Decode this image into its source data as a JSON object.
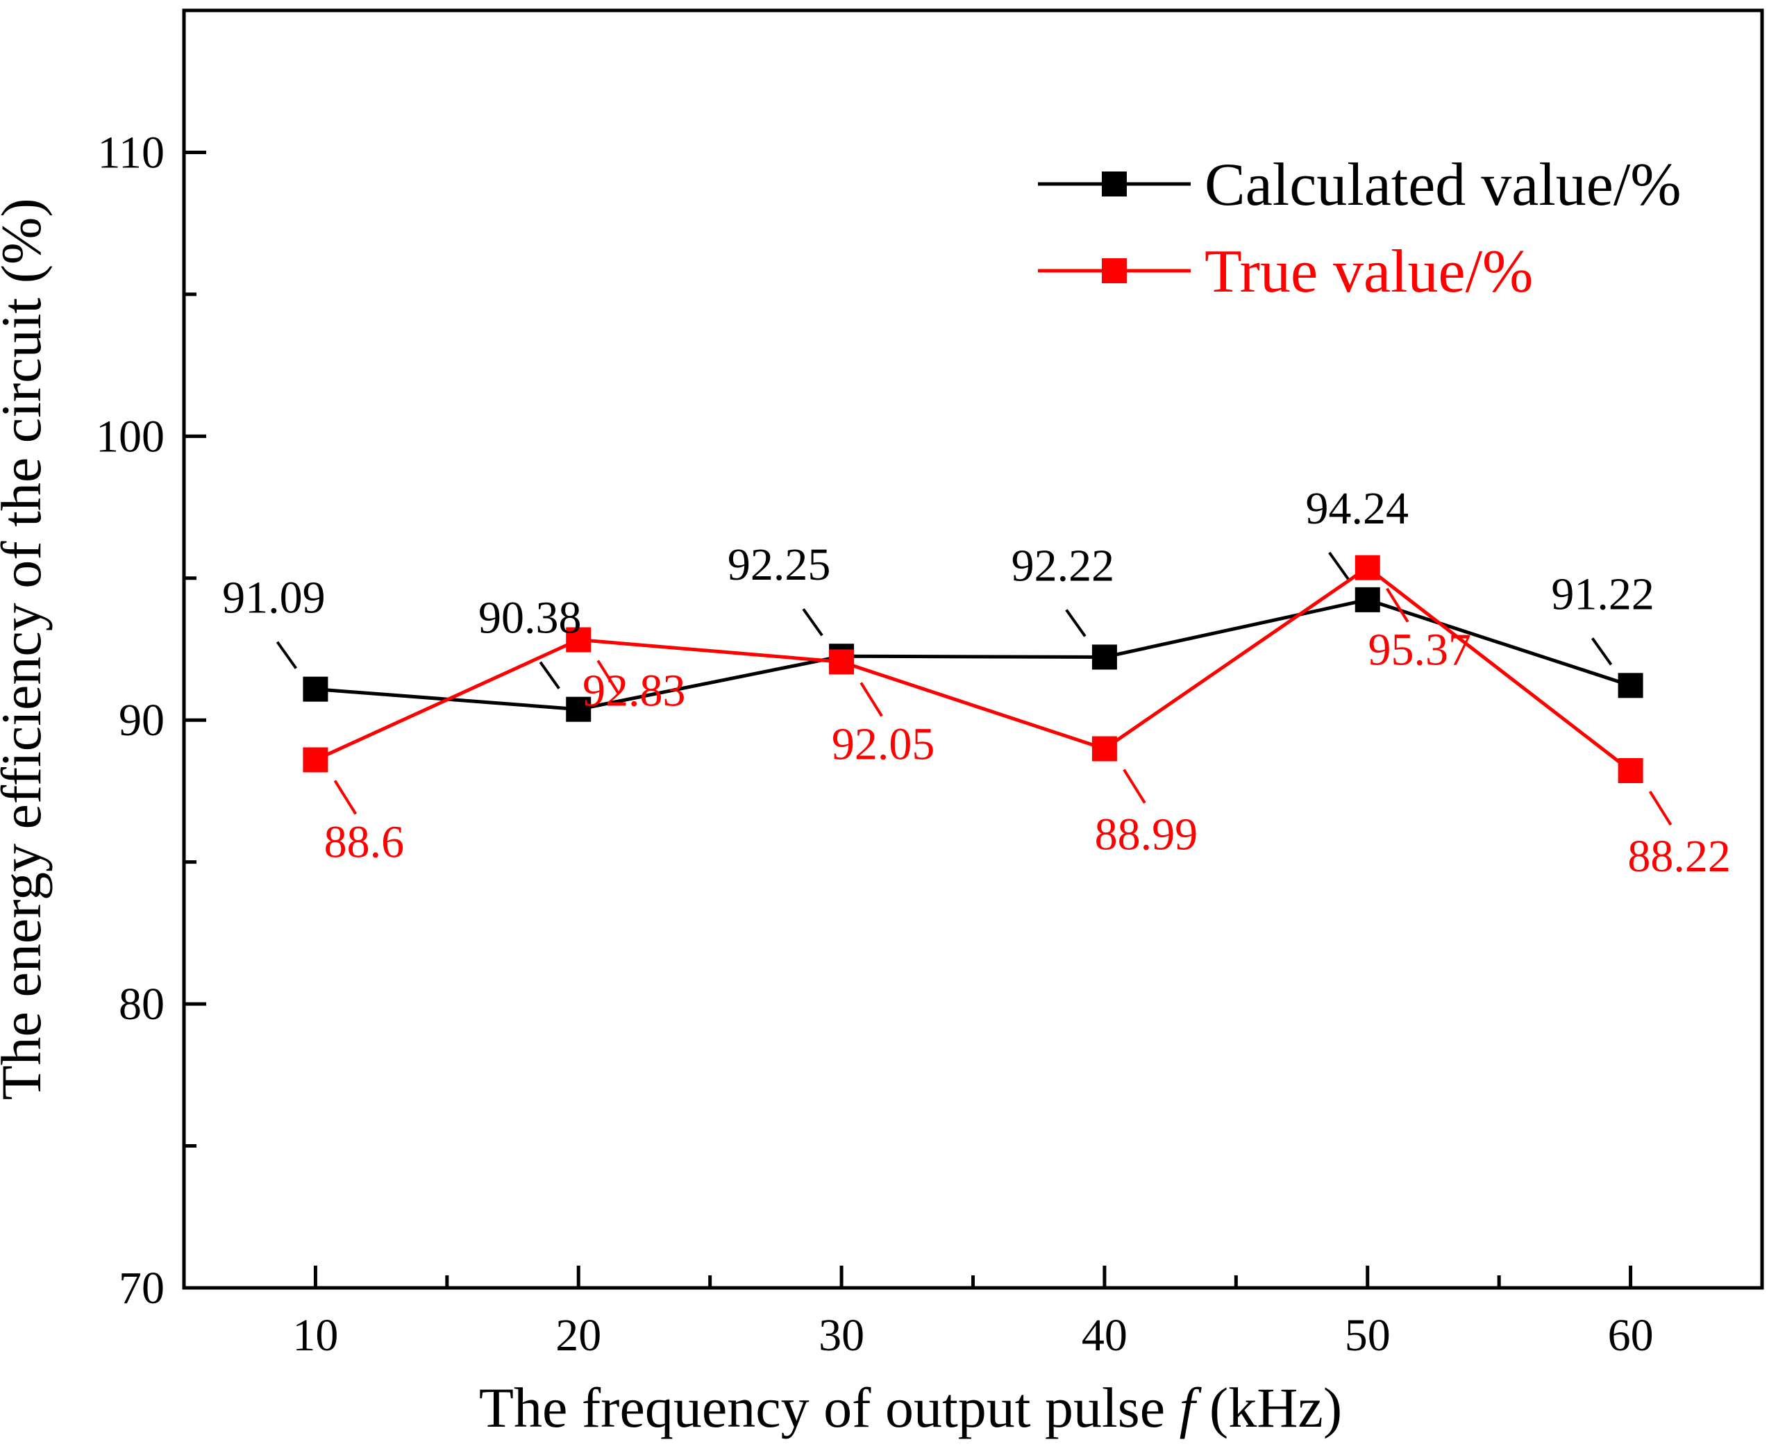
{
  "chart_data": {
    "type": "line",
    "title": "",
    "xlabel_prefix": "The frequency of output pulse ",
    "xlabel_var": "f",
    "xlabel_suffix": " (kHz)",
    "ylabel": "The energy efficiency of the circuit  (%)",
    "x": [
      10,
      20,
      30,
      40,
      50,
      60
    ],
    "x_tick_labels": [
      "10",
      "20",
      "30",
      "40",
      "50",
      "60"
    ],
    "xlim": [
      5,
      65
    ],
    "ylim": [
      70,
      115
    ],
    "y_ticks": [
      70,
      80,
      90,
      100,
      110
    ],
    "y_tick_labels": [
      "70",
      "80",
      "90",
      "100",
      "110"
    ],
    "grid": false,
    "legend_position": "top-right",
    "series": [
      {
        "name": "Calculated value/%",
        "color": "#000000",
        "marker": "square",
        "values": [
          91.09,
          90.38,
          92.25,
          92.22,
          94.24,
          91.22
        ],
        "labels": [
          "91.09",
          "90.38",
          "92.25",
          "92.22",
          "94.24",
          "91.22"
        ]
      },
      {
        "name": "True value/%",
        "color": "#ff0000",
        "marker": "square",
        "values": [
          88.6,
          92.83,
          92.05,
          88.99,
          95.37,
          88.22
        ],
        "labels": [
          "88.6",
          "92.83",
          "92.05",
          "88.99",
          "95.37",
          "88.22"
        ]
      }
    ]
  }
}
